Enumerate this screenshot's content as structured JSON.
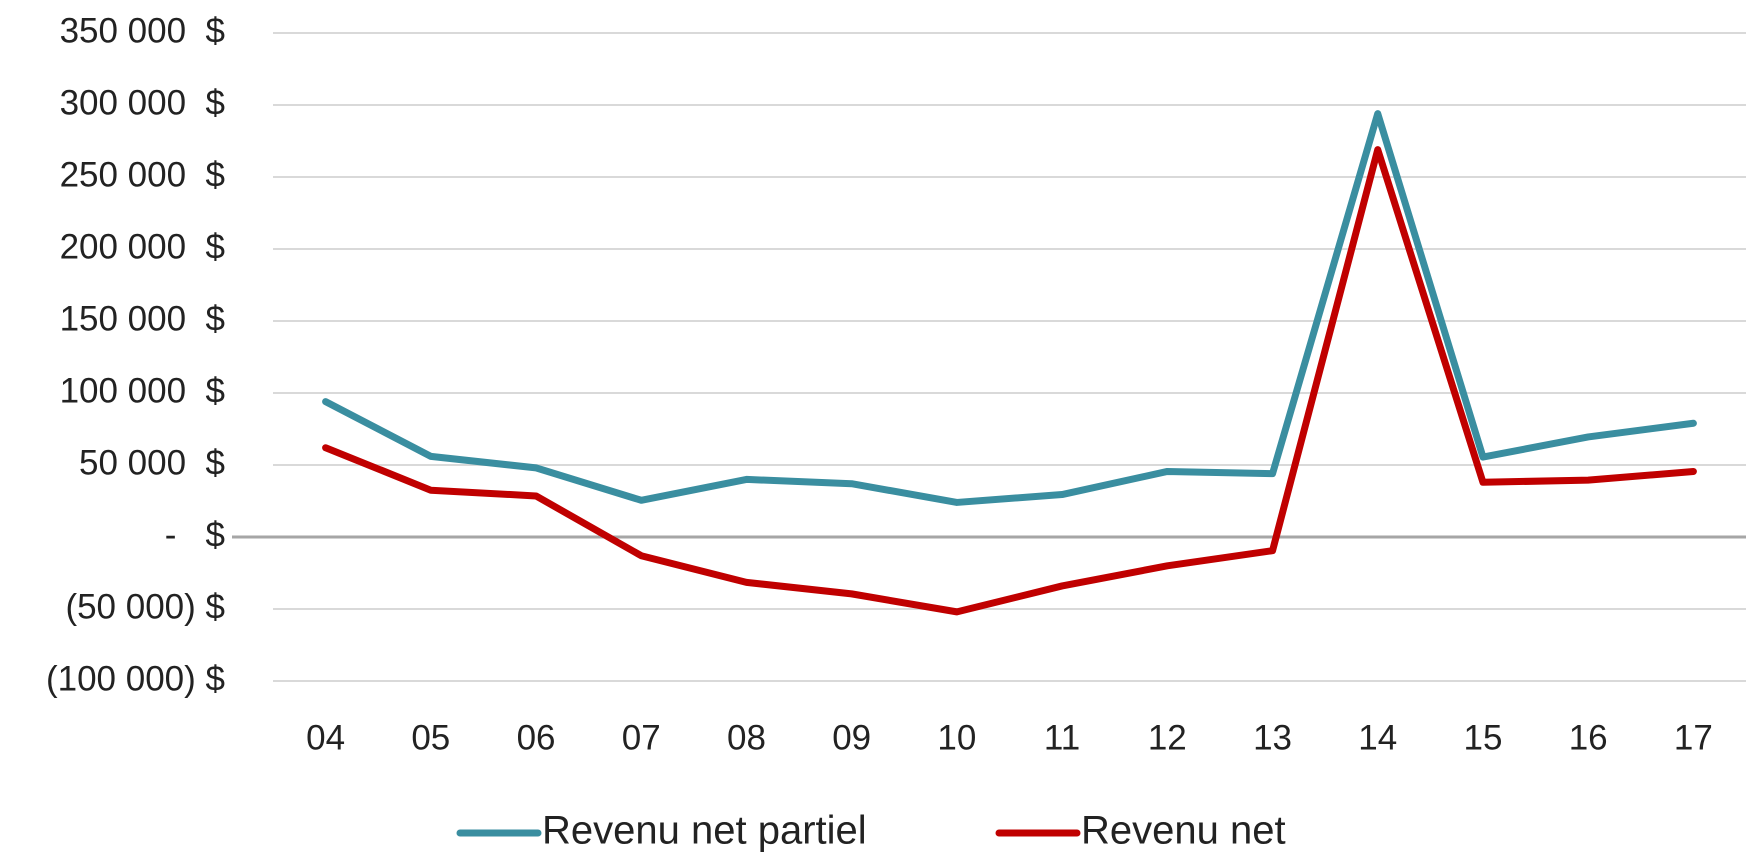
{
  "chart_data": {
    "type": "line",
    "categories": [
      "04",
      "05",
      "06",
      "07",
      "08",
      "09",
      "10",
      "11",
      "12",
      "13",
      "14",
      "15",
      "16",
      "17"
    ],
    "series": [
      {
        "name": "Revenu net partiel",
        "color": "#3a8ea0",
        "values": [
          94000,
          56000,
          48000,
          25500,
          40000,
          37000,
          24000,
          29500,
          45500,
          44000,
          294000,
          55500,
          69500,
          79000
        ]
      },
      {
        "name": "Revenu net",
        "color": "#c00000",
        "values": [
          62000,
          32500,
          28500,
          -13000,
          -31500,
          -39500,
          -52000,
          -34000,
          -20000,
          -9500,
          269000,
          38000,
          39500,
          45500
        ]
      }
    ],
    "ylim": [
      -100000,
      350000
    ],
    "yticks": [
      {
        "value": -100000,
        "label": "(100 000) $"
      },
      {
        "value": -50000,
        "label": "(50 000) $"
      },
      {
        "value": 0,
        "label": "-   $"
      },
      {
        "value": 50000,
        "label": "50 000  $"
      },
      {
        "value": 100000,
        "label": "100 000  $"
      },
      {
        "value": 150000,
        "label": "150 000  $"
      },
      {
        "value": 200000,
        "label": "200 000  $"
      },
      {
        "value": 250000,
        "label": "250 000  $"
      },
      {
        "value": 300000,
        "label": "300 000  $"
      },
      {
        "value": 350000,
        "label": "350 000  $"
      }
    ],
    "grid": true,
    "legend": "bottom"
  }
}
